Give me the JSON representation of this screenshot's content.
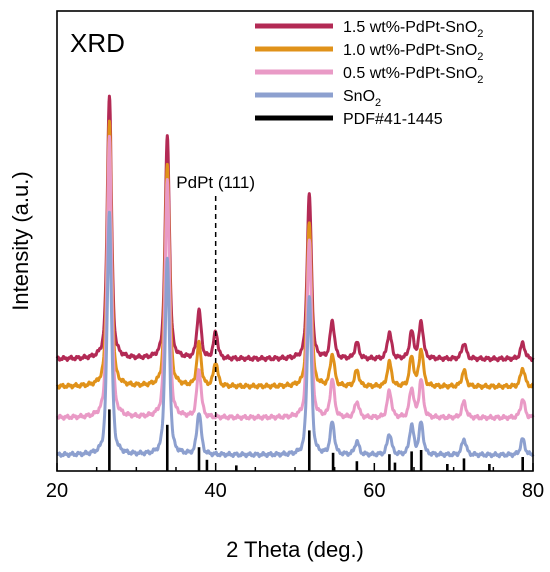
{
  "chart_data": {
    "type": "line",
    "panel_label": "XRD",
    "xlabel": "2 Theta (deg.)",
    "ylabel": "Intensity (a.u.)",
    "xlim": [
      20,
      80
    ],
    "xticks": [
      20,
      40,
      60,
      80
    ],
    "y_ticks_labeled": false,
    "grid": false,
    "legend_position": "top-right",
    "annotation": {
      "text": "PdPt (111)",
      "x": 40
    },
    "series": [
      {
        "name_main": "1.5 wt%-PdPt-SnO",
        "name_sub": "2",
        "color": "#b32a55",
        "baseline": 4.0,
        "peak_scale": 2.2,
        "peaks": [
          [
            26.6,
            5.0
          ],
          [
            33.9,
            4.2
          ],
          [
            37.9,
            0.9
          ],
          [
            40.0,
            0.5
          ],
          [
            51.8,
            3.1
          ],
          [
            54.7,
            0.7
          ],
          [
            57.8,
            0.3
          ],
          [
            61.9,
            0.5
          ],
          [
            64.7,
            0.5
          ],
          [
            65.9,
            0.7
          ],
          [
            71.3,
            0.3
          ],
          [
            78.7,
            0.3
          ]
        ]
      },
      {
        "name_main": "1.0 wt%-PdPt-SnO",
        "name_sub": "2",
        "color": "#e0921a",
        "baseline": 2.85,
        "peak_scale": 2.2,
        "peaks": [
          [
            26.6,
            5.0
          ],
          [
            33.9,
            4.2
          ],
          [
            37.9,
            0.8
          ],
          [
            40.0,
            0.45
          ],
          [
            51.8,
            3.1
          ],
          [
            54.7,
            0.6
          ],
          [
            57.8,
            0.3
          ],
          [
            61.9,
            0.45
          ],
          [
            64.7,
            0.55
          ],
          [
            65.9,
            0.7
          ],
          [
            71.3,
            0.3
          ],
          [
            78.7,
            0.35
          ]
        ]
      },
      {
        "name_main": "0.5 wt%-PdPt-SnO",
        "name_sub": "2",
        "color": "#e99ac6",
        "baseline": 1.55,
        "peak_scale": 2.2,
        "peaks": [
          [
            26.6,
            5.3
          ],
          [
            33.9,
            4.5
          ],
          [
            37.9,
            0.9
          ],
          [
            51.8,
            3.4
          ],
          [
            54.7,
            0.7
          ],
          [
            57.8,
            0.3
          ],
          [
            61.9,
            0.5
          ],
          [
            64.7,
            0.55
          ],
          [
            65.9,
            0.7
          ],
          [
            71.3,
            0.3
          ],
          [
            78.7,
            0.35
          ]
        ]
      },
      {
        "name_main": "SnO",
        "name_sub": "2",
        "color": "#8da0cf",
        "baseline": 0.0,
        "peak_scale": 2.2,
        "peaks": [
          [
            26.6,
            4.6
          ],
          [
            33.9,
            3.7
          ],
          [
            37.9,
            0.8
          ],
          [
            51.8,
            3.0
          ],
          [
            54.7,
            0.6
          ],
          [
            57.8,
            0.25
          ],
          [
            61.9,
            0.4
          ],
          [
            64.7,
            0.55
          ],
          [
            65.9,
            0.6
          ],
          [
            71.3,
            0.3
          ],
          [
            78.7,
            0.3
          ]
        ]
      }
    ],
    "reference": {
      "name": "PDF#41-1445",
      "color": "#000000",
      "sticks": [
        [
          26.6,
          4.4
        ],
        [
          33.9,
          3.3
        ],
        [
          37.9,
          1.7
        ],
        [
          38.9,
          0.8
        ],
        [
          42.6,
          0.4
        ],
        [
          51.8,
          2.9
        ],
        [
          54.8,
          1.3
        ],
        [
          57.8,
          0.7
        ],
        [
          61.9,
          1.2
        ],
        [
          62.6,
          0.6
        ],
        [
          64.7,
          1.4
        ],
        [
          65.9,
          1.5
        ],
        [
          69.2,
          0.5
        ],
        [
          71.3,
          0.9
        ],
        [
          74.5,
          0.5
        ],
        [
          78.7,
          1.0
        ]
      ]
    }
  }
}
